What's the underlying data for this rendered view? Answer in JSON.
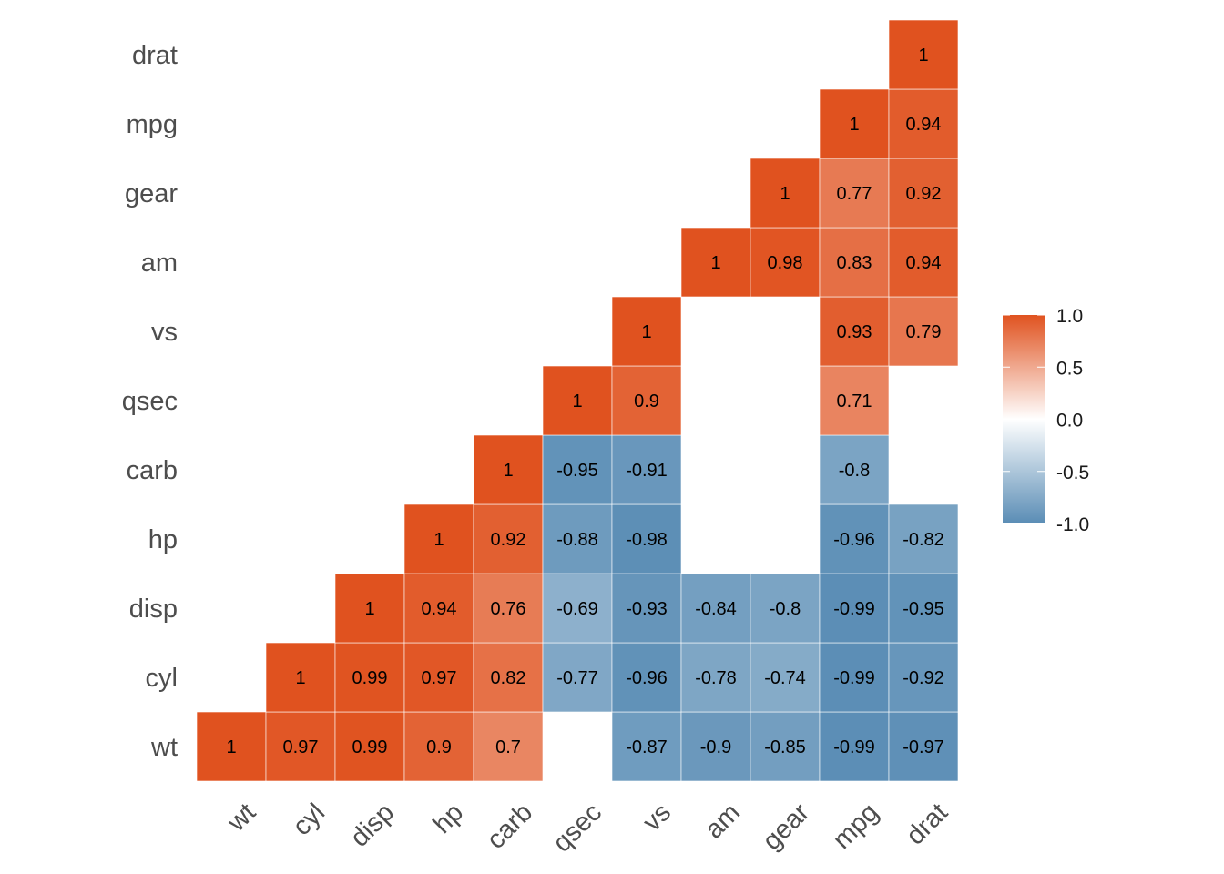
{
  "chart_data": {
    "type": "heatmap",
    "variables": [
      "wt",
      "cyl",
      "disp",
      "hp",
      "carb",
      "qsec",
      "vs",
      "am",
      "gear",
      "mpg",
      "drat"
    ],
    "cells": [
      {
        "row": "wt",
        "col": "wt",
        "value": 1,
        "label": "1"
      },
      {
        "row": "wt",
        "col": "cyl",
        "value": 0.97,
        "label": "0.97"
      },
      {
        "row": "wt",
        "col": "disp",
        "value": 0.99,
        "label": "0.99"
      },
      {
        "row": "wt",
        "col": "hp",
        "value": 0.9,
        "label": "0.9"
      },
      {
        "row": "wt",
        "col": "carb",
        "value": 0.7,
        "label": "0.7"
      },
      {
        "row": "wt",
        "col": "vs",
        "value": -0.87,
        "label": "-0.87"
      },
      {
        "row": "wt",
        "col": "am",
        "value": -0.9,
        "label": "-0.9"
      },
      {
        "row": "wt",
        "col": "gear",
        "value": -0.85,
        "label": "-0.85"
      },
      {
        "row": "wt",
        "col": "mpg",
        "value": -0.99,
        "label": "-0.99"
      },
      {
        "row": "wt",
        "col": "drat",
        "value": -0.97,
        "label": "-0.97"
      },
      {
        "row": "cyl",
        "col": "cyl",
        "value": 1,
        "label": "1"
      },
      {
        "row": "cyl",
        "col": "disp",
        "value": 0.99,
        "label": "0.99"
      },
      {
        "row": "cyl",
        "col": "hp",
        "value": 0.97,
        "label": "0.97"
      },
      {
        "row": "cyl",
        "col": "carb",
        "value": 0.82,
        "label": "0.82"
      },
      {
        "row": "cyl",
        "col": "qsec",
        "value": -0.77,
        "label": "-0.77"
      },
      {
        "row": "cyl",
        "col": "vs",
        "value": -0.96,
        "label": "-0.96"
      },
      {
        "row": "cyl",
        "col": "am",
        "value": -0.78,
        "label": "-0.78"
      },
      {
        "row": "cyl",
        "col": "gear",
        "value": -0.74,
        "label": "-0.74"
      },
      {
        "row": "cyl",
        "col": "mpg",
        "value": -0.99,
        "label": "-0.99"
      },
      {
        "row": "cyl",
        "col": "drat",
        "value": -0.92,
        "label": "-0.92"
      },
      {
        "row": "disp",
        "col": "disp",
        "value": 1,
        "label": "1"
      },
      {
        "row": "disp",
        "col": "hp",
        "value": 0.94,
        "label": "0.94"
      },
      {
        "row": "disp",
        "col": "carb",
        "value": 0.76,
        "label": "0.76"
      },
      {
        "row": "disp",
        "col": "qsec",
        "value": -0.69,
        "label": "-0.69"
      },
      {
        "row": "disp",
        "col": "vs",
        "value": -0.93,
        "label": "-0.93"
      },
      {
        "row": "disp",
        "col": "am",
        "value": -0.84,
        "label": "-0.84"
      },
      {
        "row": "disp",
        "col": "gear",
        "value": -0.8,
        "label": "-0.8"
      },
      {
        "row": "disp",
        "col": "mpg",
        "value": -0.99,
        "label": "-0.99"
      },
      {
        "row": "disp",
        "col": "drat",
        "value": -0.95,
        "label": "-0.95"
      },
      {
        "row": "hp",
        "col": "hp",
        "value": 1,
        "label": "1"
      },
      {
        "row": "hp",
        "col": "carb",
        "value": 0.92,
        "label": "0.92"
      },
      {
        "row": "hp",
        "col": "qsec",
        "value": -0.88,
        "label": "-0.88"
      },
      {
        "row": "hp",
        "col": "vs",
        "value": -0.98,
        "label": "-0.98"
      },
      {
        "row": "hp",
        "col": "mpg",
        "value": -0.96,
        "label": "-0.96"
      },
      {
        "row": "hp",
        "col": "drat",
        "value": -0.82,
        "label": "-0.82"
      },
      {
        "row": "carb",
        "col": "carb",
        "value": 1,
        "label": "1"
      },
      {
        "row": "carb",
        "col": "qsec",
        "value": -0.95,
        "label": "-0.95"
      },
      {
        "row": "carb",
        "col": "vs",
        "value": -0.91,
        "label": "-0.91"
      },
      {
        "row": "carb",
        "col": "mpg",
        "value": -0.8,
        "label": "-0.8"
      },
      {
        "row": "qsec",
        "col": "qsec",
        "value": 1,
        "label": "1"
      },
      {
        "row": "qsec",
        "col": "vs",
        "value": 0.9,
        "label": "0.9"
      },
      {
        "row": "qsec",
        "col": "mpg",
        "value": 0.71,
        "label": "0.71"
      },
      {
        "row": "vs",
        "col": "vs",
        "value": 1,
        "label": "1"
      },
      {
        "row": "vs",
        "col": "mpg",
        "value": 0.93,
        "label": "0.93"
      },
      {
        "row": "vs",
        "col": "drat",
        "value": 0.79,
        "label": "0.79"
      },
      {
        "row": "am",
        "col": "am",
        "value": 1,
        "label": "1"
      },
      {
        "row": "am",
        "col": "gear",
        "value": 0.98,
        "label": "0.98"
      },
      {
        "row": "am",
        "col": "mpg",
        "value": 0.83,
        "label": "0.83"
      },
      {
        "row": "am",
        "col": "drat",
        "value": 0.94,
        "label": "0.94"
      },
      {
        "row": "gear",
        "col": "gear",
        "value": 1,
        "label": "1"
      },
      {
        "row": "gear",
        "col": "mpg",
        "value": 0.77,
        "label": "0.77"
      },
      {
        "row": "gear",
        "col": "drat",
        "value": 0.92,
        "label": "0.92"
      },
      {
        "row": "mpg",
        "col": "mpg",
        "value": 1,
        "label": "1"
      },
      {
        "row": "mpg",
        "col": "drat",
        "value": 0.94,
        "label": "0.94"
      },
      {
        "row": "drat",
        "col": "drat",
        "value": 1,
        "label": "1"
      }
    ],
    "color_scale": {
      "low": "#5a8db5",
      "mid": "#ffffff",
      "high": "#e0521f",
      "limits": [
        -1,
        1
      ],
      "breaks": [
        1.0,
        0.5,
        0.0,
        -0.5,
        -1.0
      ],
      "break_labels": [
        "1.0",
        "0.5",
        "0.0",
        "-0.5",
        "-1.0"
      ]
    },
    "legend_position": "right",
    "grid": false
  }
}
